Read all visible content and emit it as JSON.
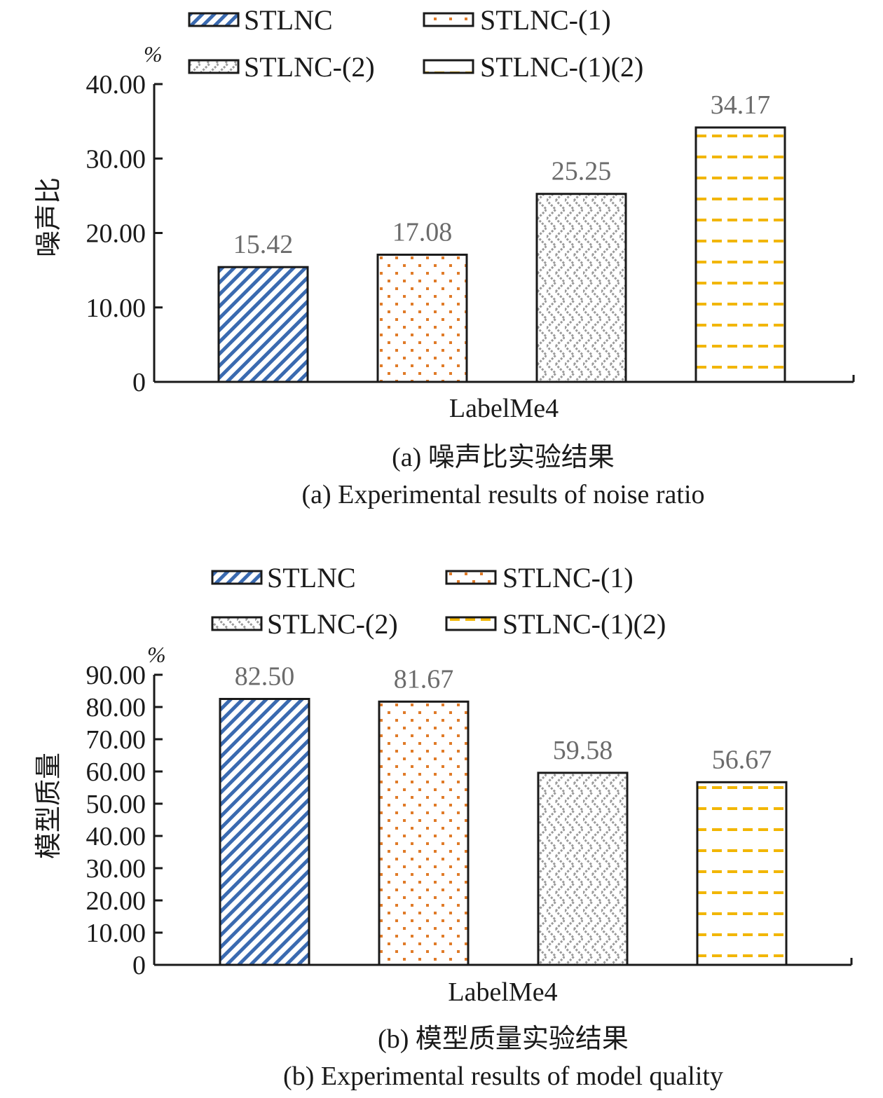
{
  "chart_data": [
    {
      "type": "bar",
      "categories": [
        "LabelMe4"
      ],
      "series": [
        {
          "name": "STLNC",
          "values": [
            15.42
          ],
          "label": "15.42",
          "color": "#3a6ab0",
          "pattern": "diag-stripes"
        },
        {
          "name": "STLNC-(1)",
          "values": [
            17.08
          ],
          "label": "17.08",
          "color": "#e07b28",
          "pattern": "dots"
        },
        {
          "name": "STLNC-(2)",
          "values": [
            25.25
          ],
          "label": "25.25",
          "color": "#9a9a9a",
          "pattern": "zigzag"
        },
        {
          "name": "STLNC-(1)(2)",
          "values": [
            34.17
          ],
          "label": "34.17",
          "color": "#f2b600",
          "pattern": "dashes"
        }
      ],
      "ylabel": "噪声比",
      "unit": "%",
      "ylim": [
        0,
        40
      ],
      "yticks": [
        0,
        10,
        20,
        30,
        40
      ],
      "ytick_labels": [
        "0",
        "10.00",
        "20.00",
        "30.00",
        "40.00"
      ],
      "legend_position": "top",
      "caption_cn": "(a) 噪声比实验结果",
      "caption_en": "(a) Experimental results of noise ratio"
    },
    {
      "type": "bar",
      "categories": [
        "LabelMe4"
      ],
      "series": [
        {
          "name": "STLNC",
          "values": [
            82.5
          ],
          "label": "82.50",
          "color": "#3a6ab0",
          "pattern": "diag-stripes"
        },
        {
          "name": "STLNC-(1)",
          "values": [
            81.67
          ],
          "label": "81.67",
          "color": "#e07b28",
          "pattern": "dots"
        },
        {
          "name": "STLNC-(2)",
          "values": [
            59.58
          ],
          "label": "59.58",
          "color": "#9a9a9a",
          "pattern": "zigzag"
        },
        {
          "name": "STLNC-(1)(2)",
          "values": [
            56.67
          ],
          "label": "56.67",
          "color": "#f2b600",
          "pattern": "dashes"
        }
      ],
      "ylabel": "模型质量",
      "unit": "%",
      "ylim": [
        0,
        90
      ],
      "yticks": [
        0,
        10,
        20,
        30,
        40,
        50,
        60,
        70,
        80,
        90
      ],
      "ytick_labels": [
        "0",
        "10.00",
        "20.00",
        "30.00",
        "40.00",
        "50.00",
        "60.00",
        "70.00",
        "80.00",
        "90.00"
      ],
      "legend_position": "top",
      "caption_cn": "(b) 模型质量实验结果",
      "caption_en": "(b) Experimental results of model quality"
    }
  ]
}
